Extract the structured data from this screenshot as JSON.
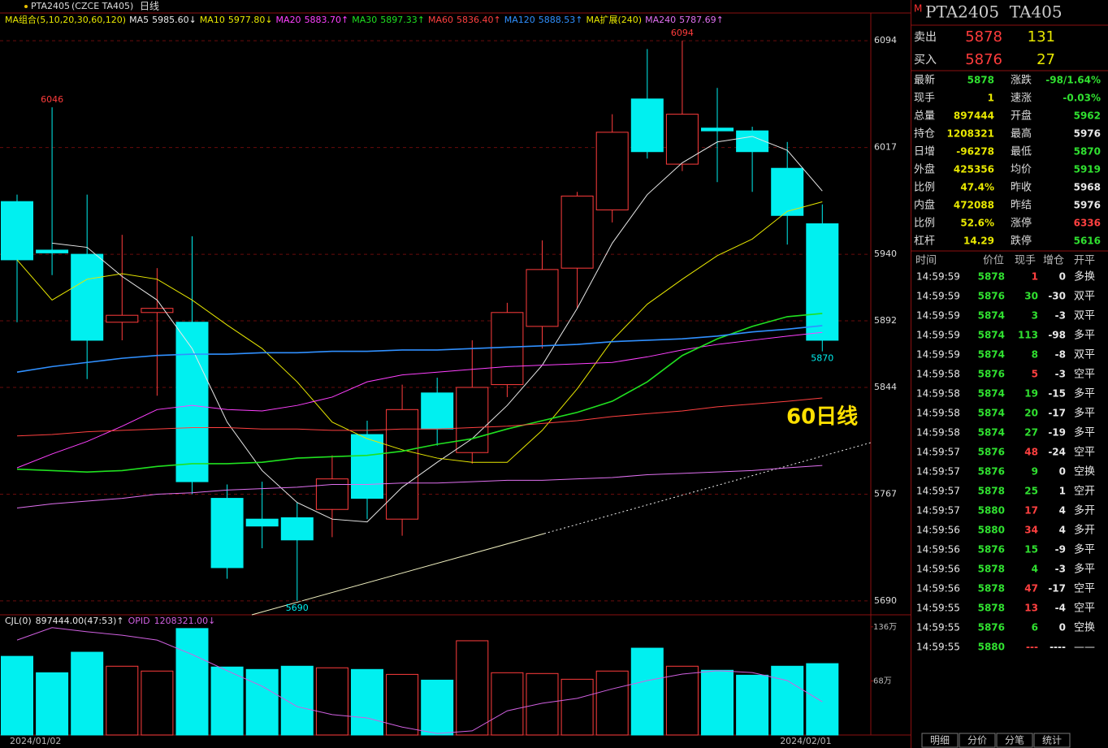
{
  "header": {
    "symbol": "PTA2405",
    "exchange": "(CZCE TA405)",
    "period": "日线"
  },
  "chart_data": [
    {
      "type": "candlestick",
      "legend_title": "MA组合(5,10,20,30,60,120)",
      "legend_extra": "MA扩展(240)",
      "categories": [
        "2024/01/02",
        null,
        null,
        null,
        null,
        null,
        null,
        null,
        null,
        null,
        null,
        null,
        null,
        null,
        null,
        null,
        null,
        null,
        null,
        null,
        null,
        null,
        "2024/02/01",
        null
      ],
      "open": [
        5978,
        5943,
        5940,
        5891,
        5898,
        5891,
        5764,
        5749,
        5750,
        5756,
        5810,
        5749,
        5840,
        5797,
        5846,
        5888,
        5930,
        5972,
        6052,
        6005,
        6031,
        6029,
        6002,
        5962
      ],
      "high": [
        5983,
        6046,
        5983,
        5954,
        5930,
        5953,
        5774,
        5776,
        5761,
        5795,
        5820,
        5846,
        5851,
        5878,
        5905,
        5950,
        5985,
        6041,
        6088,
        6094,
        6060,
        6032,
        6021,
        5976
      ],
      "low": [
        5891,
        5925,
        5850,
        5878,
        5838,
        5767,
        5706,
        5728,
        5690,
        5736,
        5749,
        5737,
        5802,
        5789,
        5837,
        5872,
        5901,
        5963,
        6009,
        6000,
        5992,
        5985,
        5947,
        5870
      ],
      "close": [
        5936,
        5941,
        5878,
        5896,
        5901,
        5776,
        5714,
        5744,
        5734,
        5778,
        5764,
        5828,
        5814,
        5844,
        5898,
        5929,
        5982,
        6028,
        6014,
        6041,
        6029,
        6014,
        5968,
        5878
      ],
      "up_color": "#ff3c3c",
      "down_color": "#00f0f0",
      "series": [
        {
          "name": "MA5",
          "color": "#e8e8e8",
          "label": "5985.60↓",
          "values": [
            null,
            5948,
            5945,
            5924,
            5907,
            5872,
            5819,
            5784,
            5761,
            5749,
            5747,
            5772,
            5790,
            5807,
            5831,
            5860,
            5901,
            5948,
            5983,
            6006,
            6021,
            6025,
            6015,
            5985.6
          ]
        },
        {
          "name": "MA10",
          "color": "#e8e800",
          "label": "5977.80↓",
          "values": [
            5936,
            5907,
            5922,
            5926,
            5922,
            5907,
            5889,
            5872,
            5848,
            5819,
            5807,
            5799,
            5793,
            5790,
            5790,
            5813,
            5843,
            5878,
            5904,
            5922,
            5939,
            5951,
            5971,
            5977.8
          ]
        },
        {
          "name": "MA20",
          "color": "#ff40ff",
          "label": "5883.70↑",
          "values": [
            5786,
            5796,
            5805,
            5816,
            5828,
            5831,
            5828,
            5827,
            5831,
            5837,
            5848,
            5853,
            5855,
            5857,
            5859,
            5860,
            5861,
            5862,
            5866,
            5871,
            5875,
            5878,
            5881,
            5883.7
          ]
        },
        {
          "name": "MA30",
          "color": "#20e020",
          "label": "5897.33↑",
          "values": [
            5785,
            5784,
            5783,
            5784,
            5787,
            5789,
            5789,
            5790,
            5793,
            5794,
            5795,
            5798,
            5803,
            5807,
            5814,
            5820,
            5826,
            5834,
            5848,
            5867,
            5879,
            5888,
            5895,
            5897.33
          ]
        },
        {
          "name": "MA60",
          "color": "#ff4040",
          "label": "5836.40↑",
          "values": [
            5809,
            5810,
            5812,
            5813,
            5814,
            5815,
            5815,
            5814,
            5814,
            5813,
            5813,
            5814,
            5814,
            5815,
            5816,
            5818,
            5820,
            5823,
            5825,
            5827,
            5830,
            5832,
            5834,
            5836.4
          ]
        },
        {
          "name": "MA120",
          "color": "#3090ff",
          "label": "5888.53↑",
          "values": [
            5855,
            5859,
            5862,
            5865,
            5867,
            5868,
            5868,
            5869,
            5869,
            5870,
            5870,
            5871,
            5871,
            5872,
            5873,
            5874,
            5875,
            5877,
            5878,
            5879,
            5881,
            5884,
            5886,
            5888.53
          ]
        },
        {
          "name": "MA240",
          "color": "#e070f0",
          "label": "5787.69↑",
          "values": [
            5757,
            5760,
            5762,
            5764,
            5767,
            5768,
            5770,
            5771,
            5772,
            5774,
            5774,
            5775,
            5775,
            5776,
            5777,
            5777,
            5778,
            5779,
            5781,
            5782,
            5783,
            5784,
            5786,
            5787.69
          ]
        }
      ],
      "ylim": [
        5680,
        6114
      ],
      "yticks": [
        5690,
        5767,
        5844,
        5892,
        5940,
        6017,
        6094
      ],
      "grid": true,
      "annotation": "60日线"
    },
    {
      "type": "bar",
      "legend": [
        "CJL(0)",
        "897444.00(47:53)↑"
      ],
      "values": [
        98.9,
        78.3,
        104.1,
        86.5,
        80.4,
        133.9,
        85.5,
        82.4,
        86.5,
        84.5,
        82.4,
        76.2,
        69.0,
        118.5,
        78.3,
        77.3,
        70.1,
        80.4,
        109.2,
        86.5,
        81.4,
        75.2,
        86.5,
        89.7444
      ],
      "ylim": [
        0,
        145
      ],
      "yticks": [
        {
          "value": 68,
          "label": "68万"
        },
        {
          "value": 136,
          "label": "136万"
        }
      ],
      "series": [
        {
          "name": "OPID",
          "label": "1208321.00↓",
          "color": "#d060e0",
          "axis": "y2",
          "values": [
            137.1,
            140.4,
            139.3,
            138.4,
            137.1,
            133.3,
            129.0,
            124.9,
            119.5,
            117.4,
            116.5,
            114.1,
            112.4,
            113.1,
            118.4,
            120.4,
            121.7,
            124.2,
            126.4,
            128.1,
            129.0,
            128.5,
            126.4,
            120.8
          ]
        }
      ],
      "y2lim": [
        112,
        142.5
      ]
    }
  ],
  "quote": {
    "title": "PTA2405  TA405",
    "mark": "M",
    "sell": {
      "label": "卖出",
      "price": 5878,
      "volume": 131
    },
    "buy": {
      "label": "买入",
      "price": 5876,
      "volume": 27
    },
    "rows": [
      {
        "label": "最新",
        "value": 5878,
        "color": "#30e030",
        "label2": "涨跌",
        "value2": "-98/1.64%",
        "color2": "#30e030"
      },
      {
        "label": "现手",
        "value": 1,
        "color": "#e8e800",
        "label2": "速涨",
        "value2": "-0.03%",
        "color2": "#30e030"
      },
      {
        "label": "总量",
        "value": 897444,
        "color": "#e8e800",
        "label2": "开盘",
        "value2": 5962,
        "color2": "#30e030"
      },
      {
        "label": "持仓",
        "value": 1208321,
        "color": "#e8e800",
        "label2": "最高",
        "value2": 5976,
        "color2": "#e8e8e8"
      },
      {
        "label": "日增",
        "value": -96278,
        "color": "#e8e800",
        "label2": "最低",
        "value2": 5870,
        "color2": "#30e030"
      },
      {
        "label": "外盘",
        "value": 425356,
        "color": "#e8e800",
        "label2": "均价",
        "value2": 5919,
        "color2": "#30e030"
      },
      {
        "label": "比例",
        "value": "47.4%",
        "color": "#e8e800",
        "label2": "昨收",
        "value2": 5968,
        "color2": "#e8e8e8"
      },
      {
        "label": "内盘",
        "value": 472088,
        "color": "#e8e800",
        "label2": "昨结",
        "value2": 5976,
        "color2": "#e8e8e8"
      },
      {
        "label": "比例",
        "value": "52.6%",
        "color": "#e8e800",
        "label2": "涨停",
        "value2": 6336,
        "color2": "#ff4040"
      },
      {
        "label": "杠杆",
        "value": 14.29,
        "color": "#e8e800",
        "label2": "跌停",
        "value2": 5616,
        "color2": "#30e030"
      }
    ]
  },
  "trades": {
    "header": [
      "时间",
      "价位",
      "现手",
      "增仓",
      "开平"
    ],
    "rows": [
      [
        "14:59:59",
        5878,
        1,
        0,
        "多换",
        "#ff4040"
      ],
      [
        "14:59:59",
        5876,
        30,
        -30,
        "双平",
        "#30e030"
      ],
      [
        "14:59:59",
        5874,
        3,
        -3,
        "双平",
        "#30e030"
      ],
      [
        "14:59:59",
        5874,
        113,
        -98,
        "多平",
        "#30e030"
      ],
      [
        "14:59:59",
        5874,
        8,
        -8,
        "双平",
        "#30e030"
      ],
      [
        "14:59:58",
        5876,
        5,
        -3,
        "空平",
        "#ff4040"
      ],
      [
        "14:59:58",
        5874,
        19,
        -15,
        "多平",
        "#30e030"
      ],
      [
        "14:59:58",
        5874,
        20,
        -17,
        "多平",
        "#30e030"
      ],
      [
        "14:59:58",
        5874,
        27,
        -19,
        "多平",
        "#30e030"
      ],
      [
        "14:59:57",
        5876,
        48,
        -24,
        "空平",
        "#ff4040"
      ],
      [
        "14:59:57",
        5876,
        9,
        0,
        "空换",
        "#30e030"
      ],
      [
        "14:59:57",
        5878,
        25,
        1,
        "空开",
        "#30e030"
      ],
      [
        "14:59:57",
        5880,
        17,
        4,
        "多开",
        "#ff4040"
      ],
      [
        "14:59:56",
        5880,
        34,
        4,
        "多开",
        "#ff4040"
      ],
      [
        "14:59:56",
        5876,
        15,
        -9,
        "多平",
        "#30e030"
      ],
      [
        "14:59:56",
        5878,
        4,
        -3,
        "多平",
        "#30e030"
      ],
      [
        "14:59:56",
        5878,
        47,
        -17,
        "空平",
        "#ff4040"
      ],
      [
        "14:59:55",
        5878,
        13,
        -4,
        "空平",
        "#ff4040"
      ],
      [
        "14:59:55",
        5876,
        6,
        0,
        "空换",
        "#30e030"
      ],
      [
        "14:59:55",
        5880,
        "---",
        "----",
        "——",
        "#ff4040"
      ]
    ]
  },
  "tabs": [
    "明细",
    "分价",
    "分笔",
    "统计"
  ]
}
